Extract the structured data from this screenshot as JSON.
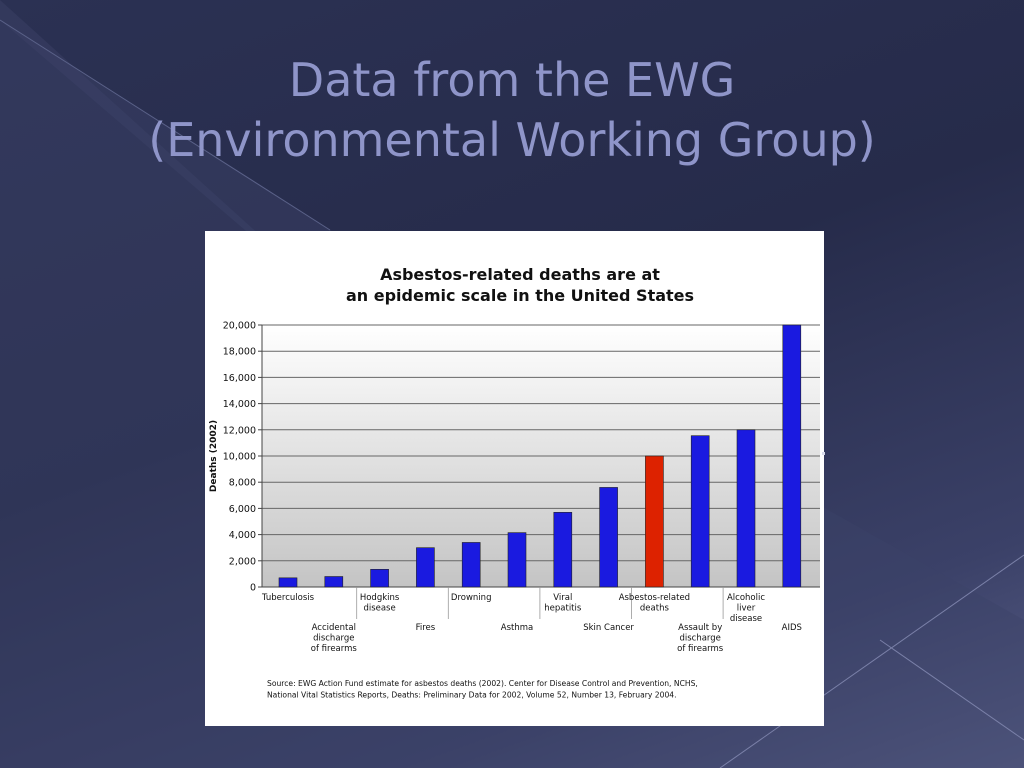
{
  "slide": {
    "title_line1": "Data from the EWG",
    "title_line2": "(Environmental Working Group)"
  },
  "colors": {
    "bar": "#1a1ae0",
    "highlight": "#dd2200",
    "title_text": "#8f95c9"
  },
  "chart_data": {
    "type": "bar",
    "title": [
      "Asbestos-related deaths are at",
      "an epidemic scale in the United States"
    ],
    "ylabel": "Deaths (2002)",
    "xlabel": "",
    "ylim": [
      0,
      20000
    ],
    "yticks": [
      "0",
      "2,000",
      "4,000",
      "6,000",
      "8,000",
      "10,000",
      "12,000",
      "14,000",
      "16,000",
      "18,000",
      "20,000"
    ],
    "grid": true,
    "categories": [
      [
        "Tuberculosis"
      ],
      [
        "Accidental",
        "discharge",
        "of firearms"
      ],
      [
        "Hodgkins",
        "disease"
      ],
      [
        "Fires"
      ],
      [
        "Drowning"
      ],
      [
        "Asthma"
      ],
      [
        "Viral",
        "hepatitis"
      ],
      [
        "Skin Cancer"
      ],
      [
        "Asbestos-related",
        "deaths"
      ],
      [
        "Assault by",
        "discharge",
        "of firearms"
      ],
      [
        "Alcoholic",
        "liver",
        "disease"
      ],
      [
        "AIDS"
      ]
    ],
    "values": [
      700,
      800,
      1350,
      3000,
      3400,
      4150,
      5700,
      7600,
      10000,
      11550,
      12000,
      20000
    ],
    "highlight_index": 8,
    "source": [
      "Source:  EWG Action Fund estimate for asbestos deaths (2002).  Center for Disease Control and Prevention, NCHS,",
      "National Vital Statistics Reports, Deaths: Preliminary Data for 2002, Volume 52, Number 13, February 2004."
    ]
  }
}
